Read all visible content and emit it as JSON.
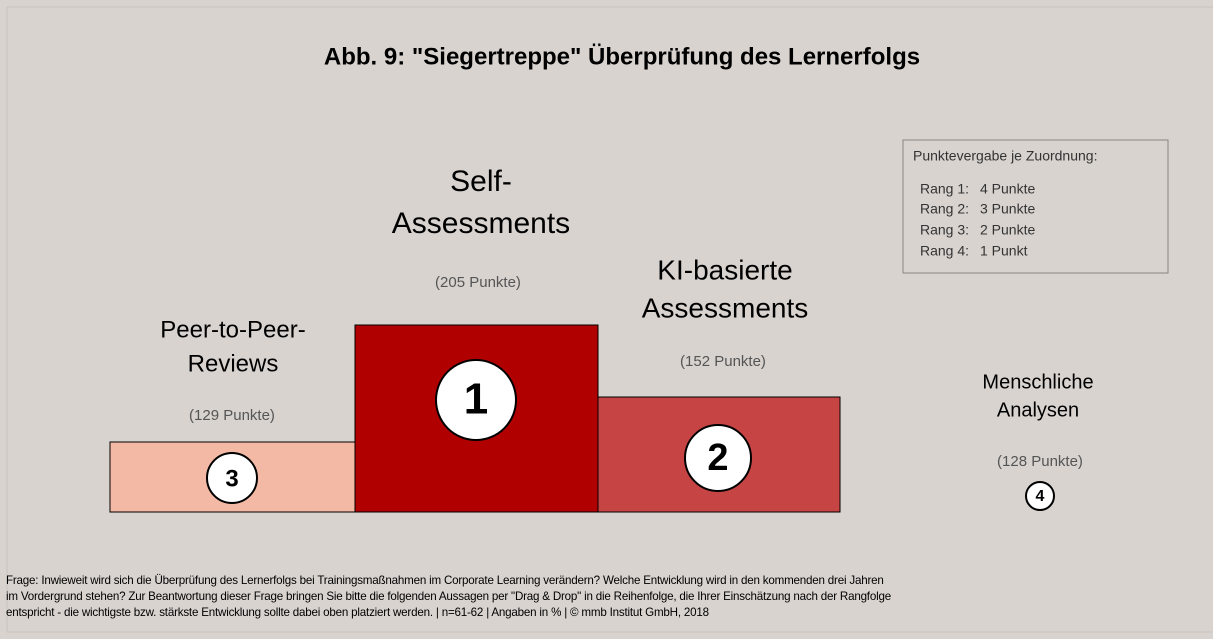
{
  "title": "Abb. 9: \"Siegertreppe\" Überprüfung des Lernerfolgs",
  "podium": [
    {
      "rank": "1",
      "label": [
        "Self-",
        "Assessments"
      ],
      "points": "(205 Punkte)"
    },
    {
      "rank": "2",
      "label": [
        "KI-basierte",
        "Assessments"
      ],
      "points": "(152 Punkte)"
    },
    {
      "rank": "3",
      "label": [
        "Peer-to-Peer-",
        "Reviews"
      ],
      "points": "(129 Punkte)"
    },
    {
      "rank": "4",
      "label": [
        "Menschliche",
        "Analysen"
      ],
      "points": "(128 Punkte)"
    }
  ],
  "legend": {
    "heading": "Punktevergabe je Zuordnung:",
    "rows": [
      {
        "rank": "Rang 1:",
        "points": "4 Punkte"
      },
      {
        "rank": "Rang 2:",
        "points": "3 Punkte"
      },
      {
        "rank": "Rang 3:",
        "points": "2 Punkte"
      },
      {
        "rank": "Rang 4:",
        "points": "1 Punkt"
      }
    ]
  },
  "footer": [
    "Frage: Inwieweit wird sich die Überprüfung des Lernerfolgs bei Trainingsmaßnahmen im Corporate Learning verändern? Welche Entwicklung wird in den kommenden drei Jahren",
    "im Vordergrund stehen? Zur Beantwortung dieser Frage bringen Sie bitte die folgenden Aussagen per \"Drag & Drop\" in die Reihenfolge, die Ihrer Einschätzung nach der Rangfolge",
    "entspricht - die wichtigste bzw. stärkste Entwicklung sollte dabei oben platziert werden. | n=61-62 | Angaben in % | © mmb Institut GmbH, 2018"
  ]
}
